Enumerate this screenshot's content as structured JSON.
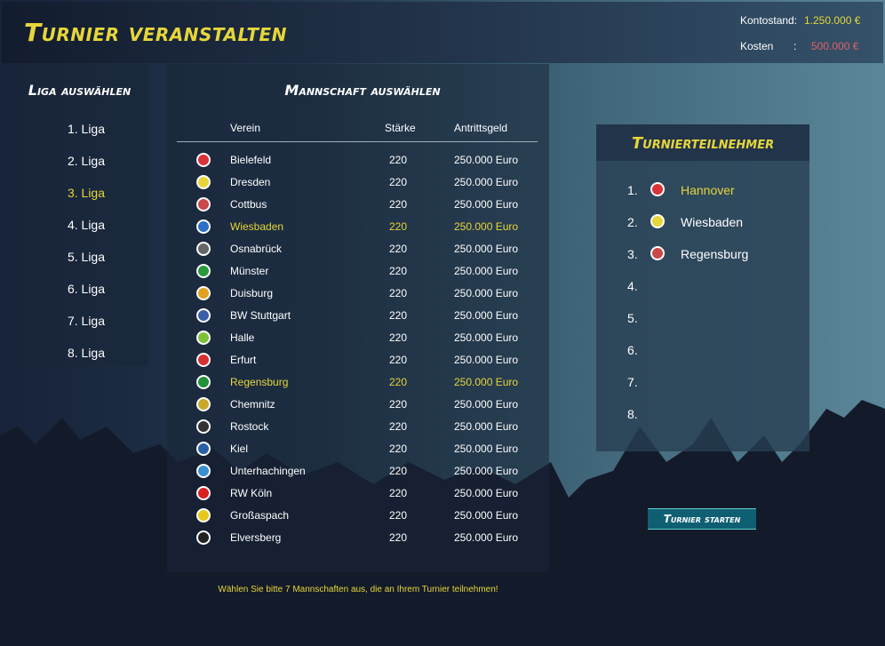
{
  "header": {
    "title": "Turnier veranstalten",
    "balance_label": "Kontostand:",
    "balance_value": "1.250.000 €",
    "cost_label": "Kosten",
    "cost_sep": ":",
    "cost_value": "500.000 €"
  },
  "leagues": {
    "title": "Liga auswählen",
    "items": [
      "1. Liga",
      "2. Liga",
      "3. Liga",
      "4. Liga",
      "5. Liga",
      "6. Liga",
      "7. Liga",
      "8. Liga"
    ],
    "selected": 2
  },
  "teams": {
    "title": "Mannschaft auswählen",
    "columns": [
      "Verein",
      "Stärke",
      "Antrittsgeld"
    ],
    "rows": [
      {
        "name": "Bielefeld",
        "strength": "220",
        "fee": "250.000 Euro",
        "logo": "#d8333a",
        "selected": false
      },
      {
        "name": "Dresden",
        "strength": "220",
        "fee": "250.000 Euro",
        "logo": "#e6d63a",
        "selected": false
      },
      {
        "name": "Cottbus",
        "strength": "220",
        "fee": "250.000 Euro",
        "logo": "#c94848",
        "selected": false
      },
      {
        "name": "Wiesbaden",
        "strength": "220",
        "fee": "250.000 Euro",
        "logo": "#2d6fc7",
        "selected": true
      },
      {
        "name": "Osnabrück",
        "strength": "220",
        "fee": "250.000 Euro",
        "logo": "#666666",
        "selected": false
      },
      {
        "name": "Münster",
        "strength": "220",
        "fee": "250.000 Euro",
        "logo": "#2a9a3a",
        "selected": false
      },
      {
        "name": "Duisburg",
        "strength": "220",
        "fee": "250.000 Euro",
        "logo": "#e2a11d",
        "selected": false
      },
      {
        "name": "BW Stuttgart",
        "strength": "220",
        "fee": "250.000 Euro",
        "logo": "#3a5fa8",
        "selected": false
      },
      {
        "name": "Halle",
        "strength": "220",
        "fee": "250.000 Euro",
        "logo": "#7fc23a",
        "selected": false
      },
      {
        "name": "Erfurt",
        "strength": "220",
        "fee": "250.000 Euro",
        "logo": "#d83030",
        "selected": false
      },
      {
        "name": "Regensburg",
        "strength": "220",
        "fee": "250.000 Euro",
        "logo": "#22913a",
        "selected": true
      },
      {
        "name": "Chemnitz",
        "strength": "220",
        "fee": "250.000 Euro",
        "logo": "#c9a82a",
        "selected": false
      },
      {
        "name": "Rostock",
        "strength": "220",
        "fee": "250.000 Euro",
        "logo": "#333333",
        "selected": false
      },
      {
        "name": "Kiel",
        "strength": "220",
        "fee": "250.000 Euro",
        "logo": "#2a5fa8",
        "selected": false
      },
      {
        "name": "Unterhachingen",
        "strength": "220",
        "fee": "250.000 Euro",
        "logo": "#3a8fd0",
        "selected": false
      },
      {
        "name": "RW Köln",
        "strength": "220",
        "fee": "250.000 Euro",
        "logo": "#d82020",
        "selected": false
      },
      {
        "name": "Großaspach",
        "strength": "220",
        "fee": "250.000 Euro",
        "logo": "#e6c81a",
        "selected": false
      },
      {
        "name": "Elversberg",
        "strength": "220",
        "fee": "250.000 Euro",
        "logo": "#222222",
        "selected": false
      }
    ]
  },
  "participants": {
    "title": "Turnierteilnehmer",
    "items": [
      {
        "num": "1.",
        "name": "Hannover",
        "logo": "#d8333a",
        "highlight": true
      },
      {
        "num": "2.",
        "name": "Wiesbaden",
        "logo": "#e6d63a",
        "highlight": false
      },
      {
        "num": "3.",
        "name": "Regensburg",
        "logo": "#c94848",
        "highlight": false
      },
      {
        "num": "4.",
        "name": ""
      },
      {
        "num": "5.",
        "name": ""
      },
      {
        "num": "6.",
        "name": ""
      },
      {
        "num": "7.",
        "name": ""
      },
      {
        "num": "8.",
        "name": ""
      }
    ]
  },
  "start_button": "Turnier starten",
  "hint": "Wählen Sie bitte 7 Mannschaften aus, die an Ihrem Turnier teilnehmen!"
}
